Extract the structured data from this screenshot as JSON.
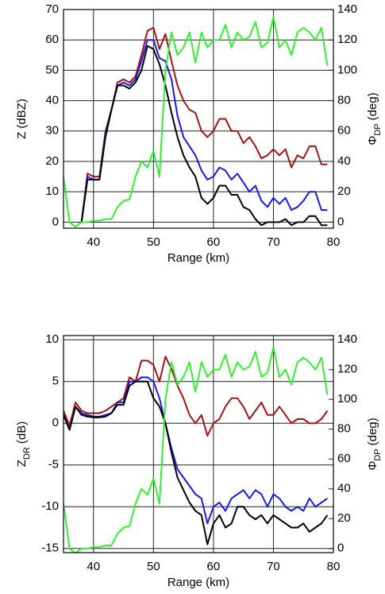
{
  "chart_data": [
    {
      "type": "line",
      "xlabel": "Range (km)",
      "ylabel": [
        "Z (dBZ)"
      ],
      "y2label": [
        "Φ",
        "DP",
        "(deg)"
      ],
      "x": [
        35,
        36,
        37,
        38,
        39,
        40,
        41,
        42,
        43,
        44,
        45,
        46,
        47,
        48,
        49,
        50,
        51,
        52,
        53,
        54,
        55,
        56,
        57,
        58,
        59,
        60,
        61,
        62,
        63,
        64,
        65,
        66,
        67,
        68,
        69,
        70,
        71,
        72,
        73,
        74,
        75,
        76,
        77,
        78,
        79
      ],
      "xlim": [
        35,
        80
      ],
      "xticks": [
        40,
        50,
        60,
        70,
        80
      ],
      "ylim": [
        -2,
        70
      ],
      "yticks": [
        0,
        10,
        20,
        30,
        40,
        50,
        60,
        70
      ],
      "y2lim": [
        -4,
        140
      ],
      "y2ticks": [
        0,
        20,
        40,
        60,
        80,
        100,
        120,
        140
      ],
      "grid": true,
      "series": [
        {
          "color": "#a01414",
          "values": [
            null,
            null,
            null,
            0,
            16,
            15,
            15,
            30,
            37,
            46,
            47,
            46,
            48,
            55,
            63,
            64,
            57,
            62,
            53,
            45,
            40,
            37,
            36,
            30,
            28,
            30,
            34,
            34,
            30,
            30,
            26,
            28,
            25,
            21,
            22,
            24,
            22,
            24,
            18,
            22,
            21,
            25,
            25,
            19,
            19
          ]
        },
        {
          "color": "#1a1ae0",
          "values": [
            null,
            null,
            null,
            0,
            15,
            14,
            14,
            29,
            37,
            45,
            46,
            45,
            47,
            53,
            60,
            60,
            54,
            53,
            47,
            35,
            28,
            25,
            22,
            17,
            14,
            15,
            18,
            17,
            14,
            16,
            13,
            10,
            12,
            7,
            5,
            8,
            6,
            8,
            4,
            5,
            7,
            10,
            10,
            4,
            4
          ]
        },
        {
          "color": "#000000",
          "values": [
            null,
            null,
            null,
            0,
            14,
            14,
            14,
            28,
            37,
            45,
            45,
            44,
            46,
            50,
            58,
            57,
            52,
            45,
            36,
            28,
            22,
            18,
            15,
            8,
            6,
            8,
            12,
            12,
            9,
            9,
            5,
            4,
            1,
            -1,
            0,
            0,
            0,
            1,
            -1,
            0,
            0,
            2,
            2,
            -1,
            -1
          ]
        },
        {
          "color": "#33ee33",
          "axis": "y2",
          "values": [
            30,
            0,
            -3,
            0,
            0,
            1,
            1,
            2,
            2,
            10,
            14,
            15,
            30,
            40,
            36,
            47,
            30,
            100,
            125,
            110,
            115,
            125,
            105,
            125,
            115,
            120,
            120,
            130,
            115,
            125,
            120,
            122,
            132,
            115,
            118,
            135,
            115,
            120,
            110,
            125,
            128,
            125,
            120,
            128,
            103
          ]
        }
      ]
    },
    {
      "type": "line",
      "xlabel": "Range (km)",
      "ylabel": [
        "Z",
        "DR",
        "(dB)"
      ],
      "y2label": [
        "Φ",
        "DP",
        "(deg)"
      ],
      "x": [
        35,
        36,
        37,
        38,
        39,
        40,
        41,
        42,
        43,
        44,
        45,
        46,
        47,
        48,
        49,
        50,
        51,
        52,
        53,
        54,
        55,
        56,
        57,
        58,
        59,
        60,
        61,
        62,
        63,
        64,
        65,
        66,
        67,
        68,
        69,
        70,
        71,
        72,
        73,
        74,
        75,
        76,
        77,
        78,
        79
      ],
      "xlim": [
        35,
        80
      ],
      "xticks": [
        40,
        50,
        60,
        70,
        80
      ],
      "ylim": [
        -15.5,
        10.5
      ],
      "yticks": [
        -15,
        -10,
        -5,
        0,
        5,
        10
      ],
      "y2lim": [
        -2.8,
        142.8
      ],
      "y2ticks": [
        0,
        20,
        40,
        60,
        80,
        100,
        120,
        140
      ],
      "grid": true,
      "series": [
        {
          "color": "#a01414",
          "values": [
            1.5,
            -0.3,
            2.5,
            1.5,
            1.2,
            1.2,
            1.2,
            1.5,
            2,
            2.5,
            3,
            5.5,
            5,
            7.5,
            7.5,
            7,
            5,
            8,
            6.5,
            4.5,
            3,
            1,
            0,
            1,
            -1.5,
            0,
            0.5,
            2,
            3,
            3,
            2,
            0.5,
            1.5,
            2.5,
            1,
            1,
            2,
            1,
            0,
            0.5,
            0.5,
            0,
            0,
            0.5,
            1.5
          ]
        },
        {
          "color": "#1a1ae0",
          "values": [
            1,
            -0.8,
            2,
            1.2,
            1,
            0.8,
            0.8,
            1,
            1.2,
            2.5,
            2.5,
            5,
            5,
            5.5,
            5.5,
            5,
            3,
            0,
            -3,
            -5.5,
            -6.5,
            -7.5,
            -8.5,
            -9,
            -12,
            -10,
            -9.5,
            -10.5,
            -9,
            -8.5,
            -8,
            -9,
            -8,
            -8.5,
            -10,
            -8.5,
            -9,
            -10,
            -10.5,
            -10,
            -10.5,
            -9,
            -10,
            -9.5,
            -9
          ]
        },
        {
          "color": "#000000",
          "values": [
            1,
            -0.8,
            2,
            1,
            0.8,
            0.7,
            0.7,
            0.8,
            1.2,
            2.2,
            2.2,
            4.5,
            5,
            5,
            5,
            3,
            2,
            0,
            -3.5,
            -6.5,
            -8,
            -9.5,
            -10.5,
            -11,
            -14.5,
            -12,
            -11,
            -12.5,
            -12,
            -10,
            -10,
            -11,
            -11.5,
            -11,
            -12,
            -11,
            -11.5,
            -12,
            -12.5,
            -12.5,
            -12,
            -13,
            -12.5,
            -12,
            -11
          ]
        },
        {
          "color": "#33ee33",
          "axis": "y2",
          "values": [
            30,
            0,
            -3,
            0,
            0,
            1,
            1,
            2,
            2,
            10,
            14,
            15,
            30,
            40,
            36,
            47,
            30,
            100,
            125,
            110,
            115,
            125,
            105,
            125,
            115,
            120,
            120,
            130,
            115,
            125,
            120,
            122,
            132,
            115,
            118,
            135,
            115,
            120,
            110,
            125,
            128,
            125,
            120,
            128,
            103
          ]
        }
      ]
    }
  ]
}
